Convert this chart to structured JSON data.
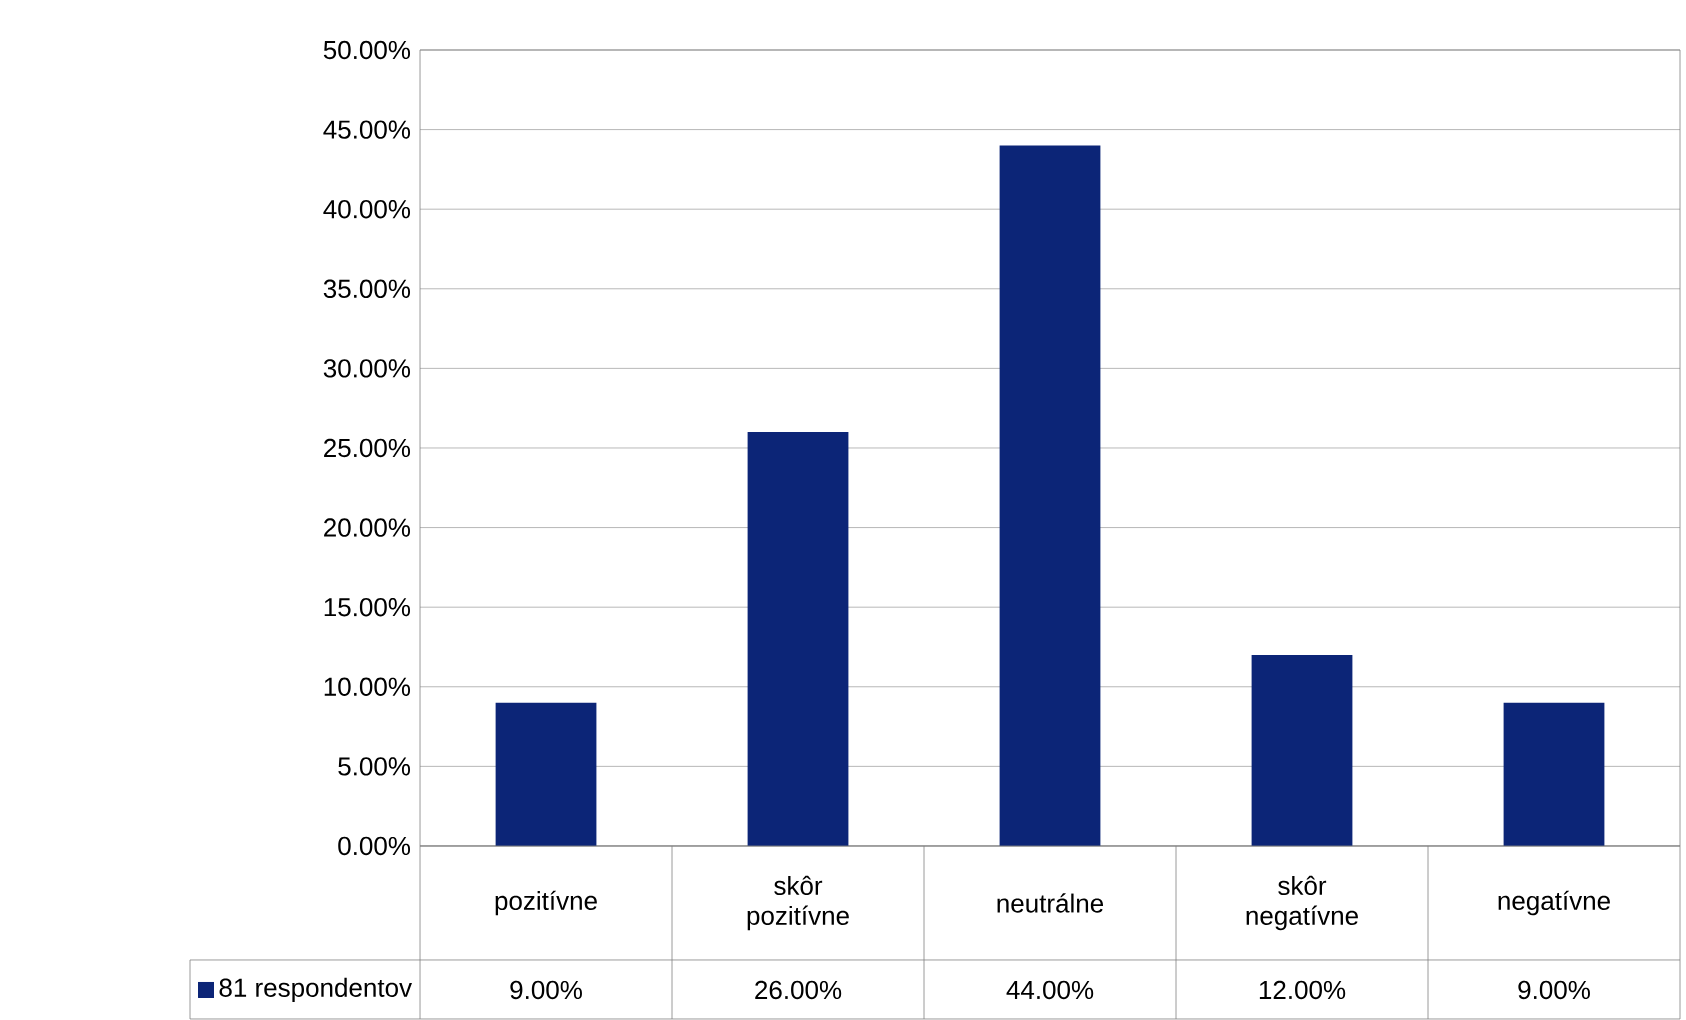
{
  "chart_data": {
    "type": "bar",
    "categories": [
      "pozitívne",
      "skôr pozitívne",
      "neutrálne",
      "skôr negatívne",
      "negatívne"
    ],
    "series": [
      {
        "name": "81 respondentov",
        "color": "#0c2577",
        "values": [
          9,
          26,
          44,
          12,
          9
        ],
        "value_labels": [
          "9.00%",
          "26.00%",
          "44.00%",
          "12.00%",
          "9.00%"
        ]
      }
    ],
    "ylim": [
      0,
      50
    ],
    "yticks": [
      {
        "value": 0,
        "label": "0.00%"
      },
      {
        "value": 5,
        "label": "5.00%"
      },
      {
        "value": 10,
        "label": "10.00%"
      },
      {
        "value": 15,
        "label": "15.00%"
      },
      {
        "value": 20,
        "label": "20.00%"
      },
      {
        "value": 25,
        "label": "25.00%"
      },
      {
        "value": 30,
        "label": "30.00%"
      },
      {
        "value": 35,
        "label": "35.00%"
      },
      {
        "value": 40,
        "label": "40.00%"
      },
      {
        "value": 45,
        "label": "45.00%"
      },
      {
        "value": 50,
        "label": "50.00%"
      }
    ],
    "grid": "y",
    "legend": "bottom left"
  }
}
